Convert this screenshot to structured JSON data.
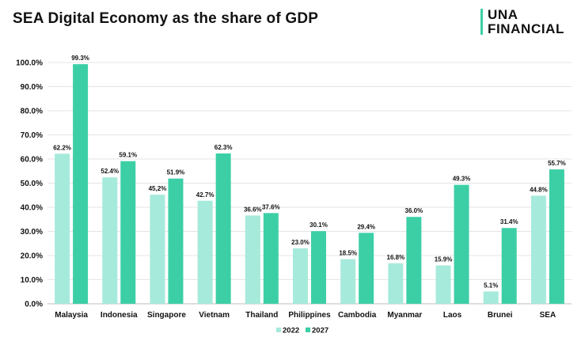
{
  "header": {
    "title": "SEA Digital Economy as the share of GDP",
    "logo_line1": "UNA",
    "logo_line2": "FINANCIAL",
    "logo_accent_color": "#3ccfa6"
  },
  "chart_data": {
    "type": "bar",
    "title": "SEA Digital Economy as the share of GDP",
    "xlabel": "",
    "ylabel": "",
    "ylim": [
      0,
      100
    ],
    "ytick_step": 10,
    "ytick_format": "{v}.0%",
    "grid": true,
    "legend": "bottom-center",
    "categories": [
      "Malaysia",
      "Indonesia",
      "Singapore",
      "Vietnam",
      "Thailand",
      "Philippines",
      "Cambodia",
      "Myanmar",
      "Laos",
      "Brunei",
      "SEA"
    ],
    "series": [
      {
        "name": "2022",
        "color": "#a6eadb",
        "values": [
          62.2,
          52.4,
          45.2,
          42.7,
          36.6,
          23.0,
          18.5,
          16.8,
          15.9,
          5.1,
          44.8
        ],
        "labels": [
          "62.2%",
          "52.4%",
          "45,2%",
          "42.7%",
          "36.6%",
          "23.0%",
          "18.5%",
          "16.8%",
          "15.9%",
          "5.1%",
          "44.8%"
        ]
      },
      {
        "name": "2027",
        "color": "#3ccfa6",
        "values": [
          99.3,
          59.1,
          51.9,
          62.3,
          37.6,
          30.1,
          29.4,
          36.0,
          49.3,
          31.4,
          55.7
        ],
        "labels": [
          "99.3%",
          "59.1%",
          "51.9%",
          "62.3%",
          "37.6%",
          "30.1%",
          "29.4%",
          "36.0%",
          "49.3%",
          "31.4%",
          "55.7%"
        ]
      }
    ]
  }
}
